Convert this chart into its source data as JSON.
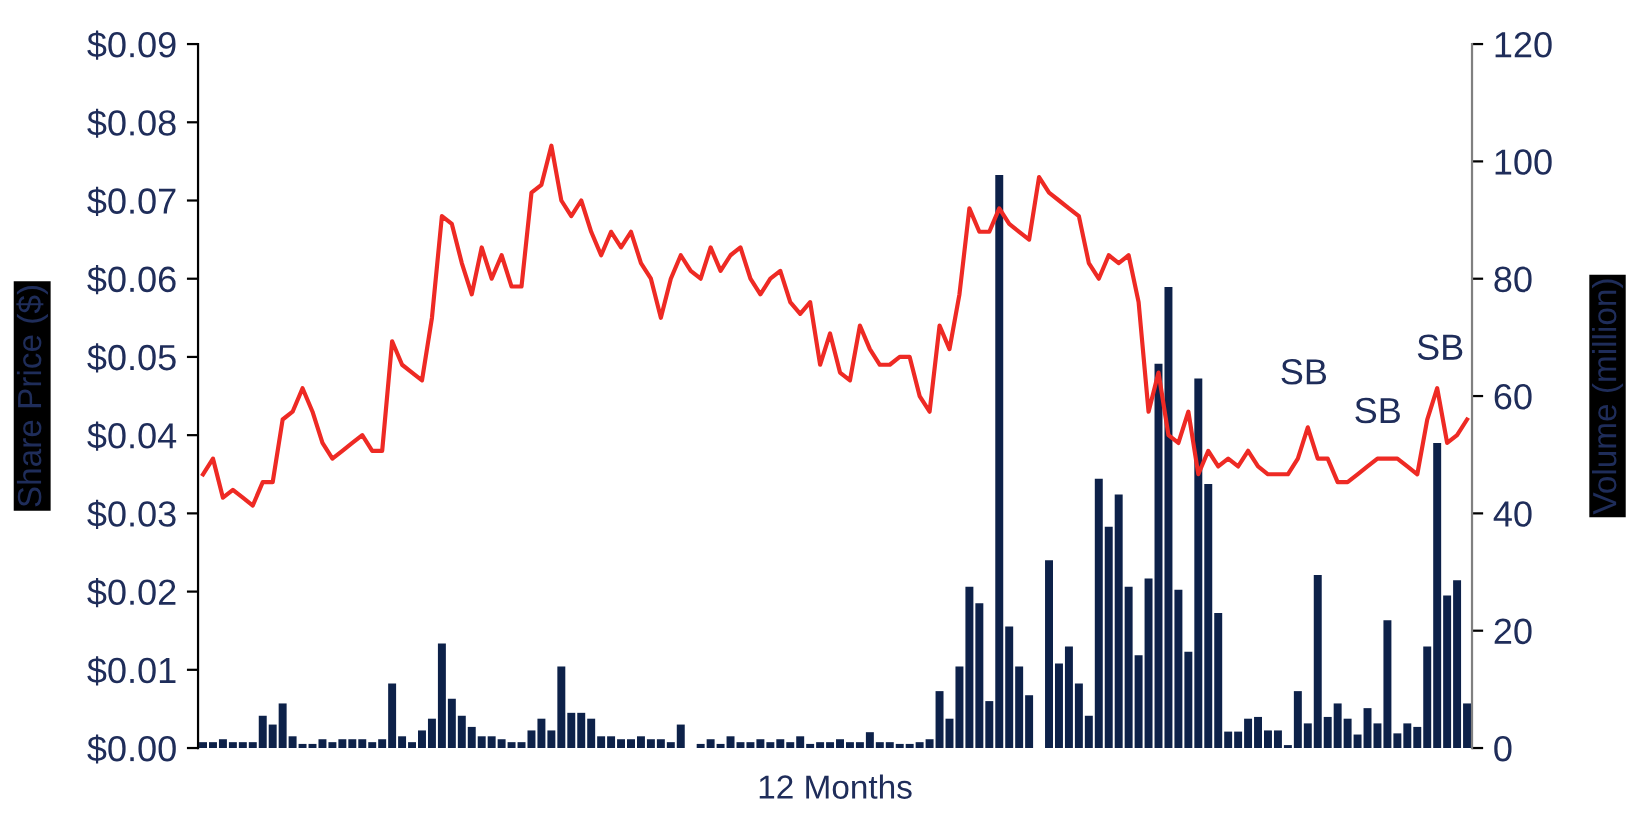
{
  "chart_data": {
    "type": "bar",
    "xlabel": "12 Months",
    "ylabel": "Share Price ($)",
    "y2label": "Volume (million)",
    "categories": [
      null,
      null,
      null,
      null,
      null,
      null,
      null,
      null,
      null,
      null,
      null,
      null,
      null,
      null,
      null,
      null,
      null,
      null,
      null,
      null,
      null,
      null,
      null,
      null,
      null,
      null,
      null,
      null,
      null,
      null,
      null,
      null,
      null,
      null,
      null,
      null,
      null,
      null,
      null,
      null,
      null,
      null,
      null,
      null,
      null,
      null,
      null,
      null,
      null,
      null,
      null,
      null,
      null,
      null,
      null,
      null,
      null,
      null,
      null,
      null,
      null,
      null,
      null,
      null,
      null,
      null,
      null,
      null,
      null,
      null,
      null,
      null,
      null,
      null,
      null,
      null,
      null,
      null,
      null,
      null,
      null,
      null,
      null,
      null,
      null,
      null,
      null,
      null,
      null,
      null,
      null,
      null,
      null,
      null,
      null,
      null,
      null,
      null,
      null,
      null,
      null,
      null,
      null,
      null,
      null,
      null,
      null,
      null,
      null,
      null,
      null,
      null,
      null,
      null,
      null,
      null,
      null,
      null,
      null,
      null,
      null,
      null,
      null,
      null,
      null,
      null,
      null,
      null
    ],
    "series": [
      {
        "axis": "y2",
        "color": "#0d2149",
        "values": [
          1,
          1,
          1.5,
          1,
          1,
          1,
          5.5,
          4,
          7.6,
          2,
          0.7,
          0.7,
          1.5,
          1,
          1.5,
          1.5,
          1.5,
          1,
          1.5,
          11,
          2,
          1,
          3,
          5,
          17.8,
          8.4,
          5.5,
          3.6,
          2,
          2,
          1.5,
          1,
          1,
          3,
          5,
          3,
          13.9,
          6,
          6,
          5,
          2,
          2,
          1.5,
          1.5,
          2,
          1.5,
          1.5,
          1,
          4,
          0,
          0.7,
          1.5,
          0.7,
          2,
          1,
          1,
          1.5,
          1,
          1.5,
          1,
          2,
          0.7,
          1,
          1,
          1.5,
          1,
          1,
          2.7,
          1,
          1,
          0.7,
          0.7,
          1,
          1.5,
          9.7,
          5,
          13.9,
          27.5,
          24.7,
          8,
          97.7,
          20.7,
          13.9,
          9,
          0,
          32,
          14.4,
          17.3,
          11,
          5.5,
          45.9,
          37.7,
          43.2,
          27.5,
          15.8,
          28.9,
          65.5,
          78.6,
          27,
          16.4,
          63,
          45,
          23,
          2.8,
          2.8,
          5,
          5.3,
          3,
          3,
          0.5,
          9.7,
          4.2,
          29.5,
          5.3,
          7.6,
          5,
          2.3,
          6.8,
          4.2,
          21.8,
          2.5,
          4.2,
          3.6,
          17.3,
          52,
          26,
          28.6,
          7.6
        ]
      },
      {
        "type": "line",
        "axis": "y",
        "color": "#ee2a24",
        "values": [
          0.035,
          0.037,
          0.032,
          0.033,
          0.032,
          0.031,
          0.034,
          0.034,
          0.042,
          0.043,
          0.046,
          0.043,
          0.039,
          0.037,
          0.038,
          0.039,
          0.04,
          0.038,
          0.038,
          0.052,
          0.049,
          0.048,
          0.047,
          0.055,
          0.068,
          0.067,
          0.062,
          0.058,
          0.064,
          0.06,
          0.063,
          0.059,
          0.059,
          0.071,
          0.072,
          0.077,
          0.07,
          0.068,
          0.07,
          0.066,
          0.063,
          0.066,
          0.064,
          0.066,
          0.062,
          0.06,
          0.055,
          0.06,
          0.063,
          0.061,
          0.06,
          0.064,
          0.061,
          0.063,
          0.064,
          0.06,
          0.058,
          0.06,
          0.061,
          0.057,
          0.0555,
          0.057,
          0.049,
          0.053,
          0.048,
          0.047,
          0.054,
          0.051,
          0.049,
          0.049,
          0.05,
          0.05,
          0.045,
          0.043,
          0.054,
          0.051,
          0.058,
          0.069,
          0.066,
          0.066,
          0.069,
          0.067,
          0.066,
          0.065,
          0.073,
          0.071,
          0.07,
          0.069,
          0.068,
          0.062,
          0.06,
          0.063,
          0.062,
          0.063,
          0.057,
          0.043,
          0.048,
          0.04,
          0.039,
          0.043,
          0.035,
          0.038,
          0.036,
          0.037,
          0.036,
          0.038,
          0.036,
          0.035,
          0.035,
          0.035,
          0.037,
          0.041,
          0.037,
          0.037,
          0.034,
          0.034,
          0.035,
          0.036,
          0.037,
          0.037,
          0.037,
          0.036,
          0.035,
          0.042,
          0.046,
          0.039,
          0.04,
          0.042
        ]
      }
    ],
    "ylim": [
      0,
      0.09
    ],
    "yticks": [
      {
        "value": 0,
        "label": "$0.00"
      },
      {
        "value": 0.01,
        "label": "$0.01"
      },
      {
        "value": 0.02,
        "label": "$0.02"
      },
      {
        "value": 0.03,
        "label": "$0.03"
      },
      {
        "value": 0.04,
        "label": "$0.04"
      },
      {
        "value": 0.05,
        "label": "$0.05"
      },
      {
        "value": 0.06,
        "label": "$0.06"
      },
      {
        "value": 0.07,
        "label": "$0.07"
      },
      {
        "value": 0.08,
        "label": "$0.08"
      },
      {
        "value": 0.09,
        "label": "$0.09"
      }
    ],
    "y2lim": [
      0,
      120
    ],
    "y2ticks": [
      0,
      20,
      40,
      60,
      80,
      100,
      120
    ],
    "annotations": [
      "SB",
      "SB",
      "SB"
    ]
  }
}
